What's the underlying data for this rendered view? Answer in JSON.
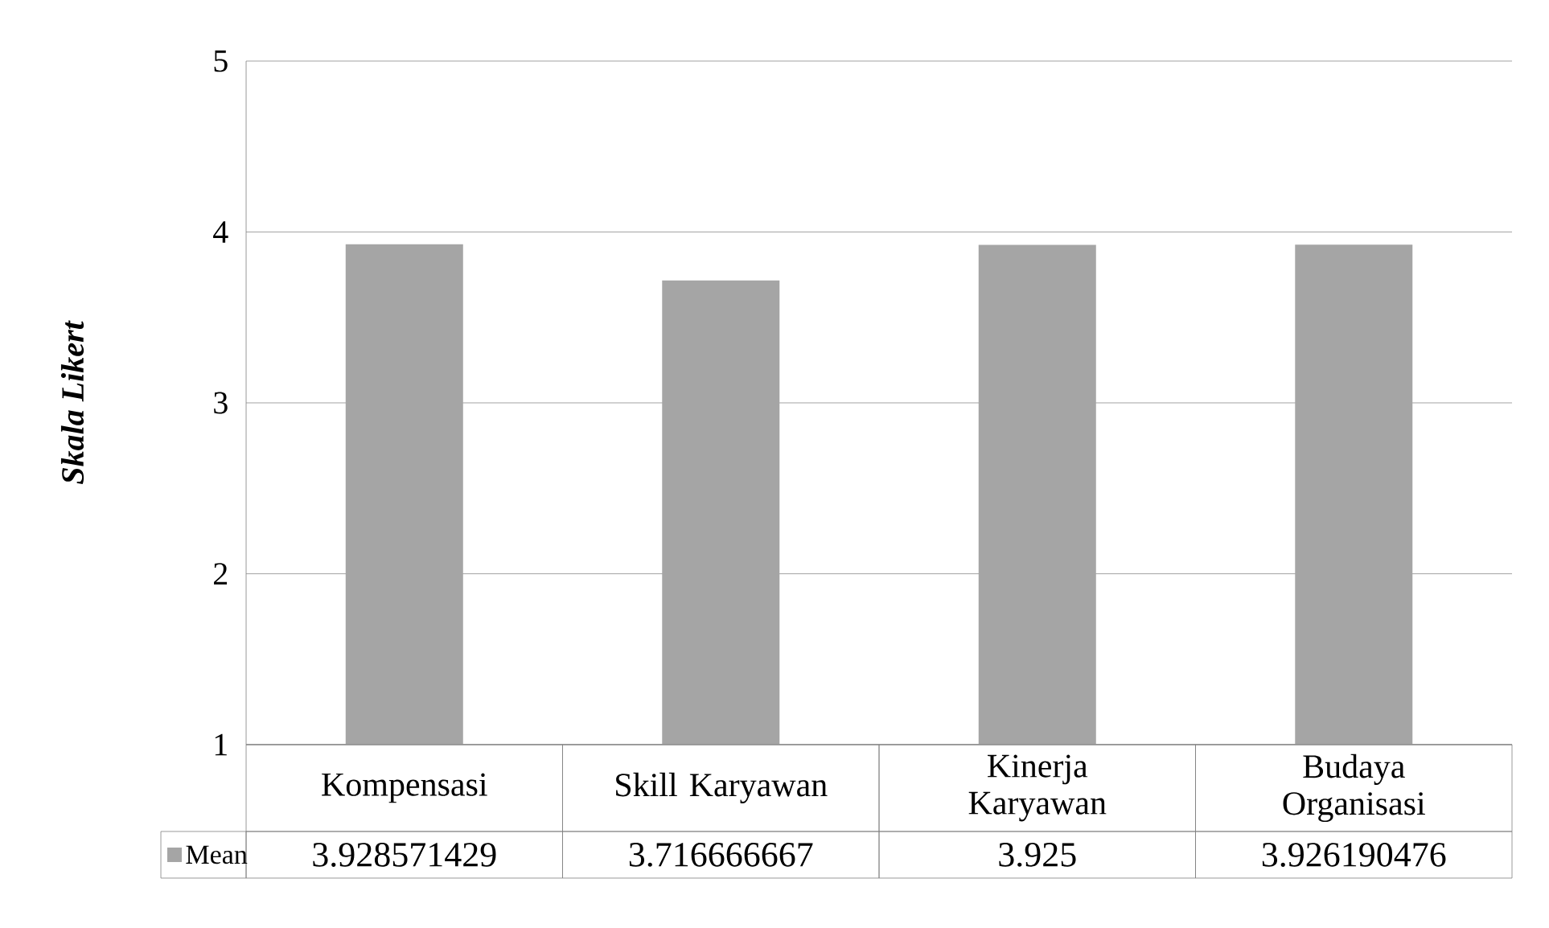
{
  "chart_data": {
    "type": "bar",
    "ylabel": "Skala Likert",
    "categories": [
      "Kompensasi",
      "Skill Karyawan",
      "Kinerja Karyawan",
      "Budaya Organisasi"
    ],
    "series": [
      {
        "name": "Mean",
        "color": "#a5a5a5",
        "values": [
          3.928571429,
          3.716666667,
          3.925,
          3.926190476
        ]
      }
    ],
    "ylim": [
      1,
      5
    ],
    "yticks": [
      1,
      2,
      3,
      4,
      5
    ],
    "grid": "y",
    "legend": "bottom",
    "data_labels": true
  }
}
